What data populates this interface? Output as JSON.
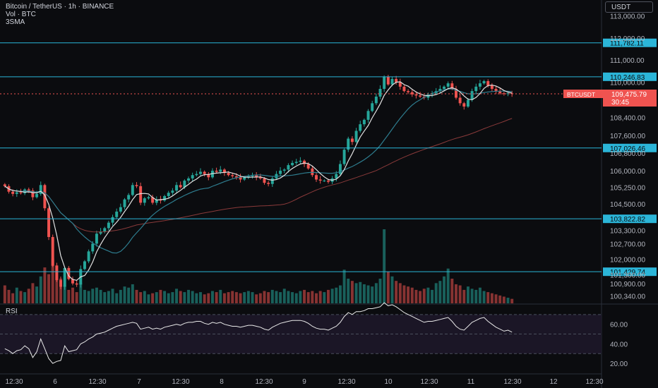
{
  "header": {
    "symbol": "Bitcoin / TetherUS · 1h · BINANCE",
    "volume": "Vol · BTC",
    "indicator": "3SMA"
  },
  "currency_button": "USDT",
  "rsi_title": "RSI",
  "price_scale": [
    "113,000.00",
    "112,000.00",
    "111,000.00",
    "110,000.00",
    "108,400.00",
    "107,600.00",
    "106,800.00",
    "106,000.00",
    "105,250.00",
    "104,500.00",
    "103,300.00",
    "102,700.00",
    "102,000.00",
    "101,300.00",
    "100,900.00",
    "100,340.00"
  ],
  "rsi_scale": [
    "60.00",
    "40.00",
    "20.00"
  ],
  "time_labels": [
    "12:30",
    "6",
    "12:30",
    "7",
    "12:30",
    "8",
    "12:30",
    "9",
    "12:30",
    "10",
    "12:30",
    "11",
    "12:30",
    "12",
    "12:30"
  ],
  "levels": [
    {
      "price": 111782.11,
      "label": "111,782.11"
    },
    {
      "price": 110246.83,
      "label": "110,246.83"
    },
    {
      "price": 107026.46,
      "label": "107,026.46"
    },
    {
      "price": 103822.82,
      "label": "103,822.82"
    },
    {
      "price": 101429.74,
      "label": "101,429.74"
    }
  ],
  "last_price": {
    "symbol": "BTCUSDT",
    "price": "109,475.79",
    "countdown": "30:45",
    "value": 109475.79
  },
  "colors": {
    "up": "#26a69a",
    "down": "#ef5350",
    "level": "#2bb5d8",
    "fast_ma": "#e0e0e0",
    "mid_ma": "#2e7d8f",
    "slow_ma": "#8a3a3a",
    "rsi_line": "#e8e8e8"
  },
  "chart_data": {
    "type": "candlestick",
    "price_axis": {
      "min": 100000,
      "max": 113400
    },
    "close_series": [
      105300,
      105050,
      104950,
      105020,
      104980,
      105150,
      105100,
      104800,
      104950,
      105350,
      104300,
      103000,
      101700,
      101050,
      100750,
      101600,
      101100,
      100900,
      100850,
      101550,
      101900,
      102350,
      102700,
      103150,
      103250,
      103400,
      103650,
      103900,
      104150,
      104350,
      104700,
      104900,
      105350,
      105300,
      104550,
      104750,
      104800,
      104550,
      104700,
      104650,
      104850,
      105000,
      105100,
      105350,
      105250,
      105550,
      105650,
      105800,
      105850,
      105950,
      105850,
      105700,
      106000,
      105950,
      106050,
      105900,
      105800,
      105750,
      105700,
      105600,
      105700,
      105750,
      105800,
      105700,
      105650,
      105450,
      105400,
      105650,
      105850,
      106000,
      106050,
      106250,
      106350,
      106400,
      106450,
      106300,
      106100,
      105800,
      105600,
      105550,
      105550,
      105500,
      105650,
      105850,
      106300,
      106950,
      107450,
      107300,
      107800,
      108100,
      108300,
      108700,
      109050,
      109350,
      109700,
      110250,
      109900,
      110150,
      110000,
      109800,
      109600,
      109550,
      109450,
      109400,
      109350,
      109300,
      109450,
      109500,
      109600,
      109700,
      109800,
      109950,
      109700,
      109300,
      109050,
      108900,
      109200,
      109600,
      109800,
      109950,
      110050,
      109850,
      109700,
      109600,
      109500,
      109480,
      109500,
      109476
    ],
    "volume_series": [
      80,
      60,
      45,
      70,
      55,
      50,
      65,
      90,
      75,
      120,
      160,
      130,
      200,
      170,
      110,
      80,
      60,
      70,
      50,
      90,
      60,
      55,
      65,
      70,
      60,
      50,
      55,
      65,
      45,
      60,
      75,
      70,
      85,
      60,
      50,
      55,
      40,
      45,
      50,
      60,
      55,
      45,
      50,
      65,
      55,
      50,
      60,
      55,
      45,
      50,
      40,
      45,
      55,
      50,
      60,
      45,
      50,
      55,
      50,
      45,
      50,
      55,
      50,
      40,
      45,
      55,
      50,
      60,
      55,
      50,
      65,
      55,
      50,
      45,
      55,
      60,
      50,
      55,
      45,
      55,
      50,
      60,
      65,
      70,
      80,
      150,
      110,
      100,
      90,
      95,
      85,
      80,
      75,
      90,
      110,
      330,
      140,
      120,
      100,
      90,
      80,
      75,
      70,
      60,
      55,
      65,
      70,
      60,
      90,
      100,
      120,
      155,
      110,
      85,
      80,
      60,
      75,
      65,
      60,
      70,
      55,
      50,
      45,
      40,
      35,
      30,
      25,
      20
    ],
    "rsi_series": [
      35,
      33,
      30,
      33,
      34,
      38,
      35,
      26,
      32,
      45,
      35,
      25,
      20,
      22,
      23,
      38,
      32,
      33,
      34,
      40,
      42,
      45,
      47,
      50,
      51,
      52,
      54,
      56,
      58,
      59,
      60,
      61,
      62,
      61,
      55,
      56,
      57,
      55,
      56,
      55,
      57,
      58,
      59,
      60,
      59,
      61,
      62,
      62,
      63,
      63,
      61,
      60,
      62,
      61,
      62,
      60,
      59,
      58,
      58,
      57,
      58,
      59,
      59,
      58,
      57,
      55,
      54,
      57,
      59,
      61,
      62,
      63,
      64,
      64,
      64,
      63,
      61,
      58,
      56,
      55,
      55,
      54,
      56,
      58,
      62,
      68,
      72,
      70,
      73,
      73,
      74,
      76,
      76,
      77,
      78,
      82,
      79,
      80,
      78,
      75,
      72,
      70,
      68,
      66,
      64,
      62,
      63,
      63,
      64,
      65,
      66,
      67,
      63,
      58,
      55,
      54,
      58,
      62,
      64,
      66,
      67,
      63,
      60,
      57,
      55,
      53,
      54,
      52
    ],
    "rsi_levels": [
      70,
      50,
      30
    ],
    "rsi_axis": {
      "min": 15,
      "max": 80
    }
  }
}
